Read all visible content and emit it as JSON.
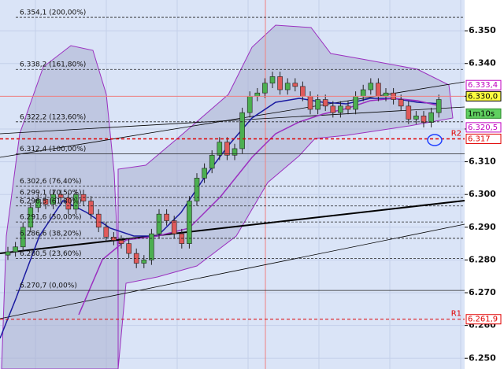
{
  "chart_data": {
    "type": "candlestick",
    "ylim": [
      6.2467,
      6.3594
    ],
    "yticks": [
      {
        "value": 6.35,
        "label": "6.350"
      },
      {
        "value": 6.34,
        "label": "6.340"
      },
      {
        "value": 6.33,
        "label": "6.330"
      },
      {
        "value": 6.32,
        "label": "6.320"
      },
      {
        "value": 6.31,
        "label": "6.310"
      },
      {
        "value": 6.3,
        "label": "6.300"
      },
      {
        "value": 6.29,
        "label": "6.290"
      },
      {
        "value": 6.28,
        "label": "6.280"
      },
      {
        "value": 6.27,
        "label": "6.270"
      },
      {
        "value": 6.26,
        "label": "6.260"
      },
      {
        "value": 6.25,
        "label": "6.250"
      }
    ],
    "grid": true,
    "up_color": "#4caf50",
    "down_color": "#e05a5a",
    "open": [
      6.2815,
      6.2825,
      6.284,
      6.29,
      6.296,
      6.2985,
      6.297,
      6.3,
      6.299,
      6.2955,
      6.3,
      6.298,
      6.294,
      6.29,
      6.287,
      6.286,
      6.285,
      6.282,
      6.279,
      6.28,
      6.288,
      6.294,
      6.292,
      6.288,
      6.285,
      6.298,
      6.305,
      6.308,
      6.312,
      6.316,
      6.312,
      6.314,
      6.325,
      6.33,
      6.331,
      6.334,
      6.336,
      6.332,
      6.334,
      6.333,
      6.33,
      6.326,
      6.329,
      6.327,
      6.325,
      6.327,
      6.326,
      6.33,
      6.332,
      6.334,
      6.33,
      6.331,
      6.329,
      6.327,
      6.323,
      6.324,
      6.322,
      6.325
    ],
    "high": [
      6.284,
      6.2855,
      6.2915,
      6.2975,
      6.3,
      6.3,
      6.3015,
      6.3015,
      6.3005,
      6.3015,
      6.3015,
      6.2995,
      6.2955,
      6.2915,
      6.2885,
      6.2875,
      6.2865,
      6.2835,
      6.2815,
      6.2895,
      6.2955,
      6.2955,
      6.2935,
      6.2895,
      6.2995,
      6.3065,
      6.3095,
      6.3135,
      6.3175,
      6.3175,
      6.3155,
      6.3265,
      6.3315,
      6.3325,
      6.3355,
      6.3375,
      6.3375,
      6.3355,
      6.3355,
      6.3345,
      6.3315,
      6.3305,
      6.3305,
      6.3285,
      6.3285,
      6.3285,
      6.3315,
      6.3335,
      6.3355,
      6.3355,
      6.3325,
      6.3325,
      6.3305,
      6.3285,
      6.3255,
      6.3255,
      6.3265,
      6.3305
    ],
    "low": [
      6.28,
      6.281,
      6.2825,
      6.2885,
      6.2945,
      6.2955,
      6.2955,
      6.2975,
      6.294,
      6.294,
      6.2965,
      6.2925,
      6.2885,
      6.2855,
      6.2845,
      6.2835,
      6.2805,
      6.2775,
      6.2775,
      6.2785,
      6.2865,
      6.2905,
      6.2865,
      6.2835,
      6.2835,
      6.2965,
      6.3035,
      6.3065,
      6.3105,
      6.3105,
      6.3105,
      6.3125,
      6.3235,
      6.3285,
      6.3295,
      6.3325,
      6.3305,
      6.3305,
      6.3315,
      6.3285,
      6.3245,
      6.3245,
      6.3255,
      6.3235,
      6.3235,
      6.3245,
      6.3245,
      6.3285,
      6.3305,
      6.3285,
      6.3285,
      6.3275,
      6.3255,
      6.3215,
      6.3215,
      6.3205,
      6.3205,
      6.3235
    ],
    "close": [
      6.2825,
      6.284,
      6.29,
      6.296,
      6.2985,
      6.297,
      6.3,
      6.299,
      6.2955,
      6.3,
      6.298,
      6.294,
      6.29,
      6.287,
      6.286,
      6.285,
      6.282,
      6.279,
      6.28,
      6.288,
      6.294,
      6.292,
      6.288,
      6.285,
      6.298,
      6.305,
      6.308,
      6.312,
      6.316,
      6.312,
      6.314,
      6.325,
      6.33,
      6.331,
      6.334,
      6.336,
      6.332,
      6.334,
      6.333,
      6.33,
      6.326,
      6.329,
      6.327,
      6.325,
      6.327,
      6.326,
      6.33,
      6.332,
      6.334,
      6.33,
      6.331,
      6.329,
      6.327,
      6.323,
      6.324,
      6.322,
      6.325,
      6.329
    ],
    "fib_levels": [
      {
        "value": 6.3541,
        "label": "6.354,1 (200,00%)"
      },
      {
        "value": 6.3382,
        "label": "6.338,2 (161,80%)"
      },
      {
        "value": 6.3222,
        "label": "6.322,2 (123,60%)"
      },
      {
        "value": 6.3124,
        "label": "6.312,4 (100,00%)"
      },
      {
        "value": 6.3026,
        "label": "6.302,6 (76,40%)"
      },
      {
        "value": 6.2991,
        "label": "6.299,1 (70,50%)"
      },
      {
        "value": 6.2965,
        "label": "6.296,5 (61,80%)"
      },
      {
        "value": 6.2916,
        "label": "6.291,6 (50,00%)"
      },
      {
        "value": 6.2866,
        "label": "6.286,6 (38,20%)"
      },
      {
        "value": 6.2805,
        "label": "6.280,5 (23,60%)"
      },
      {
        "value": 6.2707,
        "label": "6.270,7 (0,00%)"
      }
    ],
    "price_labels": [
      {
        "value": 6.3334,
        "label": "6.333,4",
        "color": "#c000c0",
        "bg": "#ffffff"
      },
      {
        "value": 6.33,
        "label": "6.330,0",
        "color": "#000000",
        "bg": "#ffff40"
      },
      {
        "value": 6.3205,
        "label": "6.320,5",
        "color": "#c000c0",
        "bg": "#ffffff"
      },
      {
        "value": 6.317,
        "label": "6.317",
        "color": "#e00000",
        "bg": "#ffffff"
      },
      {
        "value": 6.2619,
        "label": "6.261,9",
        "color": "#e00000",
        "bg": "#ffffff"
      }
    ],
    "timer": "1m10s",
    "levels": [
      {
        "value": 6.317,
        "label": "R2"
      },
      {
        "value": 6.2619,
        "label": "R1"
      }
    ],
    "crosshair": 6.33
  }
}
